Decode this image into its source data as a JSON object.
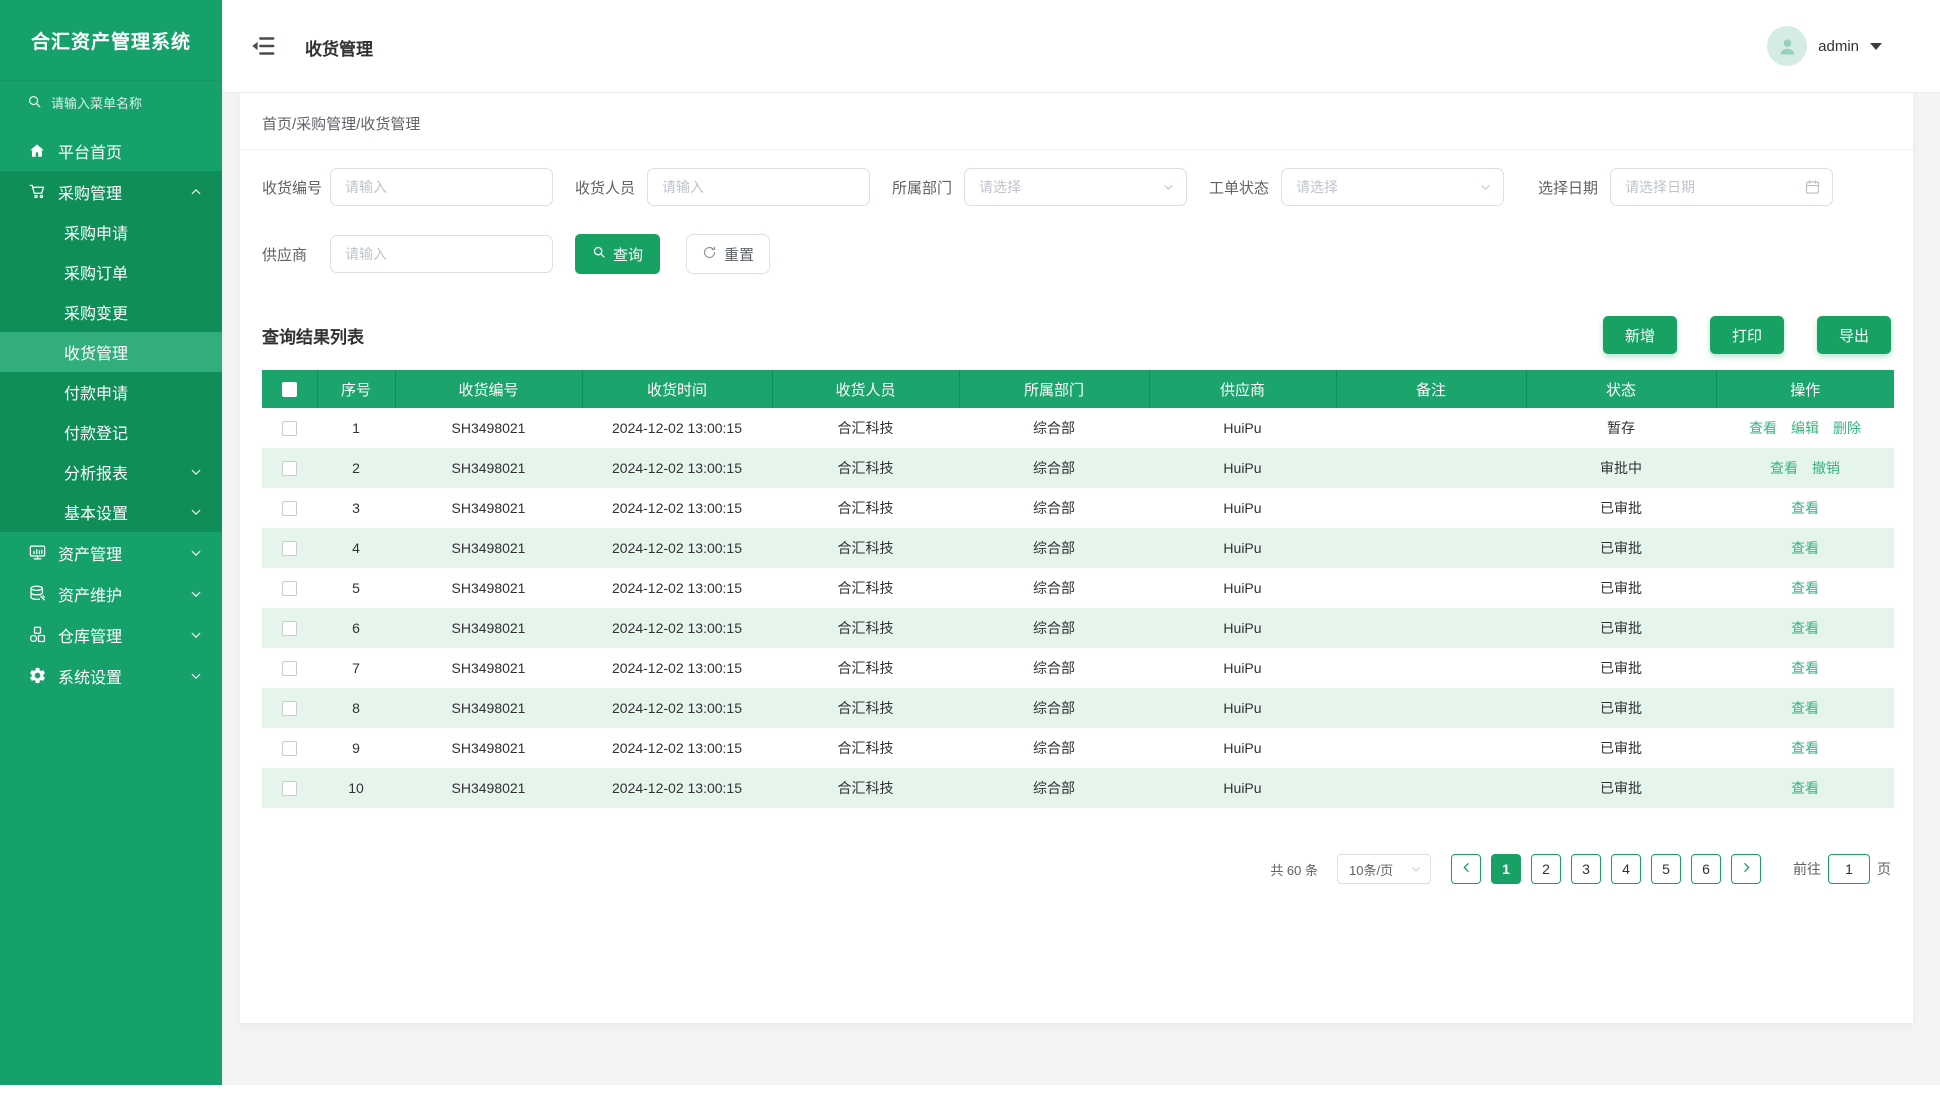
{
  "app_title": "合汇资产管理系统",
  "sidebar": {
    "search_placeholder": "请输入菜单名称",
    "items": [
      {
        "label": "平台首页",
        "icon": "home-icon"
      },
      {
        "label": "采购管理",
        "icon": "cart-icon",
        "expanded": true,
        "children": [
          {
            "label": "采购申请"
          },
          {
            "label": "采购订单"
          },
          {
            "label": "采购变更"
          },
          {
            "label": "收货管理",
            "active": true
          },
          {
            "label": "付款申请"
          },
          {
            "label": "付款登记"
          },
          {
            "label": "分析报表",
            "chevron": "down"
          },
          {
            "label": "基本设置",
            "chevron": "down"
          }
        ]
      },
      {
        "label": "资产管理",
        "icon": "monitor-icon",
        "chevron": "down"
      },
      {
        "label": "资产维护",
        "icon": "maintenance-icon",
        "chevron": "down"
      },
      {
        "label": "仓库管理",
        "icon": "warehouse-icon",
        "chevron": "down"
      },
      {
        "label": "系统设置",
        "icon": "gear-icon",
        "chevron": "down"
      }
    ]
  },
  "header": {
    "page_title": "收货管理",
    "username": "admin"
  },
  "breadcrumb": "首页/采购管理/收货管理",
  "filters": {
    "receipt_no": {
      "label": "收货编号",
      "placeholder": "请输入"
    },
    "receiver": {
      "label": "收货人员",
      "placeholder": "请输入"
    },
    "department": {
      "label": "所属部门",
      "placeholder": "请选择"
    },
    "order_status": {
      "label": "工单状态",
      "placeholder": "请选择"
    },
    "date": {
      "label": "选择日期",
      "placeholder": "请选择日期"
    },
    "supplier": {
      "label": "供应商",
      "placeholder": "请输入"
    },
    "query_label": "查询",
    "reset_label": "重置"
  },
  "results": {
    "title": "查询结果列表",
    "add_label": "新增",
    "print_label": "打印",
    "export_label": "导出"
  },
  "table": {
    "columns": [
      "序号",
      "收货编号",
      "收货时间",
      "收货人员",
      "所属部门",
      "供应商",
      "备注",
      "状态",
      "操作"
    ],
    "rows": [
      {
        "seq": "1",
        "code": "SH3498021",
        "time": "2024-12-02 13:00:15",
        "receiver": "合汇科技",
        "dept": "综合部",
        "supplier": "HuiPu",
        "remark": "",
        "status": "暂存",
        "actions": [
          "查看",
          "编辑",
          "删除"
        ]
      },
      {
        "seq": "2",
        "code": "SH3498021",
        "time": "2024-12-02 13:00:15",
        "receiver": "合汇科技",
        "dept": "综合部",
        "supplier": "HuiPu",
        "remark": "",
        "status": "审批中",
        "actions": [
          "查看",
          "撤销"
        ]
      },
      {
        "seq": "3",
        "code": "SH3498021",
        "time": "2024-12-02 13:00:15",
        "receiver": "合汇科技",
        "dept": "综合部",
        "supplier": "HuiPu",
        "remark": "",
        "status": "已审批",
        "actions": [
          "查看"
        ]
      },
      {
        "seq": "4",
        "code": "SH3498021",
        "time": "2024-12-02 13:00:15",
        "receiver": "合汇科技",
        "dept": "综合部",
        "supplier": "HuiPu",
        "remark": "",
        "status": "已审批",
        "actions": [
          "查看"
        ]
      },
      {
        "seq": "5",
        "code": "SH3498021",
        "time": "2024-12-02 13:00:15",
        "receiver": "合汇科技",
        "dept": "综合部",
        "supplier": "HuiPu",
        "remark": "",
        "status": "已审批",
        "actions": [
          "查看"
        ]
      },
      {
        "seq": "6",
        "code": "SH3498021",
        "time": "2024-12-02 13:00:15",
        "receiver": "合汇科技",
        "dept": "综合部",
        "supplier": "HuiPu",
        "remark": "",
        "status": "已审批",
        "actions": [
          "查看"
        ]
      },
      {
        "seq": "7",
        "code": "SH3498021",
        "time": "2024-12-02 13:00:15",
        "receiver": "合汇科技",
        "dept": "综合部",
        "supplier": "HuiPu",
        "remark": "",
        "status": "已审批",
        "actions": [
          "查看"
        ]
      },
      {
        "seq": "8",
        "code": "SH3498021",
        "time": "2024-12-02 13:00:15",
        "receiver": "合汇科技",
        "dept": "综合部",
        "supplier": "HuiPu",
        "remark": "",
        "status": "已审批",
        "actions": [
          "查看"
        ]
      },
      {
        "seq": "9",
        "code": "SH3498021",
        "time": "2024-12-02 13:00:15",
        "receiver": "合汇科技",
        "dept": "综合部",
        "supplier": "HuiPu",
        "remark": "",
        "status": "已审批",
        "actions": [
          "查看"
        ]
      },
      {
        "seq": "10",
        "code": "SH3498021",
        "time": "2024-12-02 13:00:15",
        "receiver": "合汇科技",
        "dept": "综合部",
        "supplier": "HuiPu",
        "remark": "",
        "status": "已审批",
        "actions": [
          "查看"
        ]
      }
    ]
  },
  "pagination": {
    "total_text": "共 60 条",
    "page_size": "10条/页",
    "pages": [
      "1",
      "2",
      "3",
      "4",
      "5",
      "6"
    ],
    "active_page": "1",
    "goto_label": "前往",
    "goto_value": "1",
    "page_unit": "页"
  },
  "colors": {
    "primary": "#17a163",
    "sidebar": "#17a16a",
    "sidebar_submenu": "#0f8e58",
    "sidebar_active": "#32ae7d",
    "table_header": "#1ba46b",
    "stripe_row": "#e6f5ec",
    "link": "#35b57e"
  }
}
